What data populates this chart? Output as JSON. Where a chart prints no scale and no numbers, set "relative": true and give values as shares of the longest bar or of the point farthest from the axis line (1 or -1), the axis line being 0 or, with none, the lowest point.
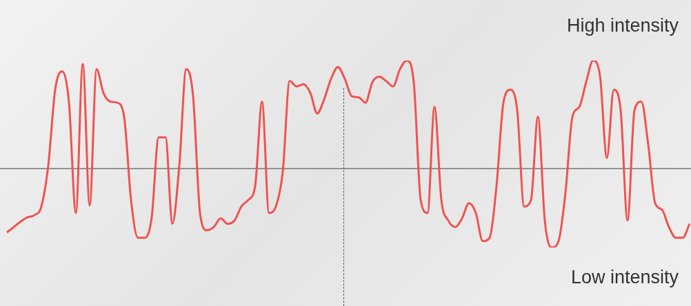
{
  "chart_data": {
    "type": "line",
    "relative": true,
    "categories": [
      null,
      null,
      null,
      null,
      null,
      null,
      null,
      null,
      null,
      null,
      null,
      null,
      null,
      null,
      null,
      null,
      null,
      null,
      null,
      null,
      null,
      null,
      null,
      null,
      null,
      null,
      null,
      null,
      null,
      null,
      null,
      null,
      null,
      null,
      null,
      null,
      null,
      null,
      null,
      null,
      null,
      null,
      null,
      null,
      null,
      null,
      null,
      null,
      null,
      null,
      null,
      null,
      null,
      null,
      null,
      null,
      null,
      null,
      null,
      null,
      null,
      null,
      null,
      null,
      null,
      null,
      null,
      null,
      null,
      null,
      null,
      null,
      null,
      null,
      null,
      null,
      null,
      null,
      null,
      null,
      null,
      null,
      null,
      null,
      null,
      null,
      null,
      null,
      null,
      null,
      null,
      null,
      null,
      null,
      null,
      null,
      null,
      null,
      null,
      null
    ],
    "series": [
      {
        "color": "#f0524f",
        "values": [
          -0.59,
          -0.54,
          -0.49,
          -0.45,
          -0.43,
          -0.35,
          0.03,
          0.73,
          0.9,
          0.61,
          -0.41,
          0.97,
          -0.34,
          0.92,
          0.7,
          0.62,
          0.61,
          0.48,
          -0.29,
          -0.64,
          -0.64,
          -0.45,
          0.29,
          0.29,
          -0.51,
          0.03,
          0.92,
          0.67,
          -0.41,
          -0.57,
          -0.54,
          -0.46,
          -0.51,
          -0.48,
          -0.35,
          -0.29,
          -0.16,
          0.62,
          -0.41,
          -0.35,
          -0.03,
          0.81,
          0.76,
          0.78,
          0.7,
          0.51,
          0.64,
          0.83,
          0.94,
          0.83,
          0.67,
          0.66,
          0.61,
          0.8,
          0.85,
          0.81,
          0.76,
          0.92,
          1,
          0.8,
          -0.29,
          -0.41,
          0.57,
          -0.29,
          -0.48,
          -0.54,
          -0.46,
          -0.32,
          -0.41,
          -0.67,
          -0.64,
          -0.16,
          0.61,
          0.73,
          0.54,
          -0.35,
          -0.29,
          0.48,
          -0.48,
          -0.73,
          -0.67,
          -0.22,
          0.48,
          0.57,
          0.8,
          1,
          0.86,
          0.1,
          0.73,
          0.54,
          -0.48,
          0.54,
          0.62,
          0.22,
          -0.32,
          -0.38,
          -0.54,
          -0.64,
          -0.64,
          -0.51
        ]
      }
    ],
    "annotations": [
      "High intensity",
      "Low intensity"
    ],
    "marker": "none",
    "line_style": "solid",
    "legend": false
  }
}
